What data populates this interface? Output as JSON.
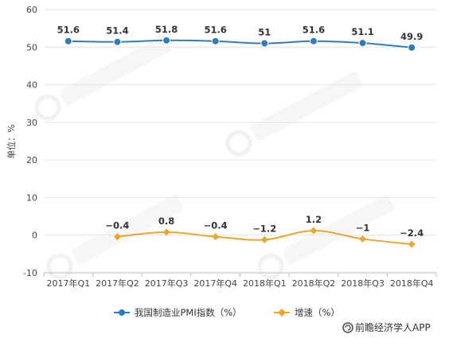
{
  "chart_data": {
    "type": "line",
    "categories": [
      "2017年Q1",
      "2017年Q2",
      "2017年Q3",
      "2017年Q4",
      "2018年Q1",
      "2018年Q2",
      "2018年Q3",
      "2018年Q4"
    ],
    "series": [
      {
        "name": "我国制造业PMI指数（%）",
        "values": [
          51.6,
          51.4,
          51.8,
          51.6,
          51,
          51.6,
          51.1,
          49.9
        ],
        "labels": [
          "51.6",
          "51.4",
          "51.8",
          "51.6",
          "51",
          "51.6",
          "51.1",
          "49.9"
        ],
        "color": "#2e7db8",
        "marker": "circle"
      },
      {
        "name": "增速（%）",
        "values": [
          null,
          -0.4,
          0.8,
          -0.4,
          -1.2,
          1.2,
          -1,
          -2.4
        ],
        "labels": [
          "",
          "−0.4",
          "0.8",
          "−0.4",
          "−1.2",
          "1.2",
          "−1",
          "−2.4"
        ],
        "color": "#e8a72e",
        "marker": "diamond"
      }
    ],
    "ylabel": "单位：%",
    "ylim": [
      -10,
      60
    ],
    "yticks": [
      -10,
      0,
      10,
      20,
      30,
      40,
      50,
      60
    ],
    "grid": true,
    "legend": "bottom"
  },
  "source_text": "前瞻经济学人APP",
  "colors": {
    "axis": "#bbbbbb",
    "grid": "#e4e4e4",
    "watermark": "#ececec"
  }
}
